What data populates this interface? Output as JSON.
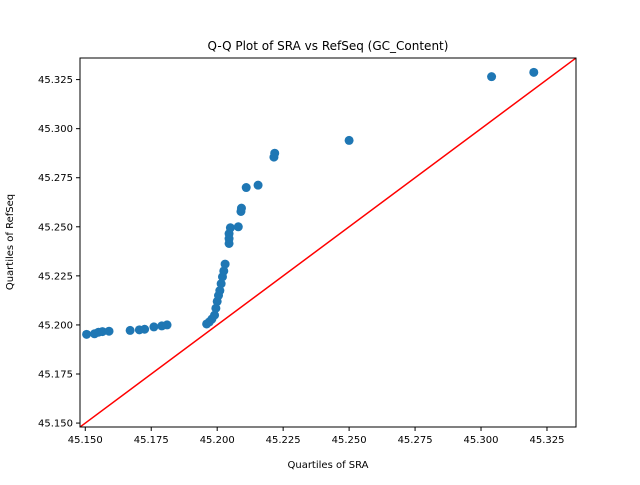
{
  "chart_data": {
    "type": "scatter",
    "title": "Q-Q Plot of SRA vs RefSeq (GC_Content)",
    "xlabel": "Quartiles of SRA",
    "ylabel": "Quartiles of RefSeq",
    "xlim": [
      45.148,
      45.336
    ],
    "ylim": [
      45.148,
      45.336
    ],
    "xticks": [
      "45.150",
      "45.175",
      "45.200",
      "45.225",
      "45.250",
      "45.275",
      "45.300",
      "45.325"
    ],
    "yticks": [
      "45.150",
      "45.175",
      "45.200",
      "45.225",
      "45.250",
      "45.275",
      "45.300",
      "45.325"
    ],
    "grid": false,
    "colors": {
      "points": "#1f77b4",
      "reference_line": "#ff0000"
    },
    "reference_line": {
      "from": [
        45.148,
        45.148
      ],
      "to": [
        45.336,
        45.336
      ]
    },
    "points": [
      {
        "x": 45.1505,
        "y": 45.1952
      },
      {
        "x": 45.1535,
        "y": 45.1955
      },
      {
        "x": 45.155,
        "y": 45.1963
      },
      {
        "x": 45.1565,
        "y": 45.1966
      },
      {
        "x": 45.159,
        "y": 45.1968
      },
      {
        "x": 45.167,
        "y": 45.1972
      },
      {
        "x": 45.1705,
        "y": 45.1975
      },
      {
        "x": 45.1725,
        "y": 45.1978
      },
      {
        "x": 45.176,
        "y": 45.199
      },
      {
        "x": 45.179,
        "y": 45.1995
      },
      {
        "x": 45.181,
        "y": 45.2
      },
      {
        "x": 45.196,
        "y": 45.2005
      },
      {
        "x": 45.197,
        "y": 45.2015
      },
      {
        "x": 45.198,
        "y": 45.203
      },
      {
        "x": 45.199,
        "y": 45.205
      },
      {
        "x": 45.1995,
        "y": 45.2085
      },
      {
        "x": 45.2,
        "y": 45.212
      },
      {
        "x": 45.2005,
        "y": 45.215
      },
      {
        "x": 45.201,
        "y": 45.2175
      },
      {
        "x": 45.2015,
        "y": 45.221
      },
      {
        "x": 45.202,
        "y": 45.2245
      },
      {
        "x": 45.2025,
        "y": 45.2275
      },
      {
        "x": 45.203,
        "y": 45.231
      },
      {
        "x": 45.2045,
        "y": 45.2415
      },
      {
        "x": 45.2045,
        "y": 45.244
      },
      {
        "x": 45.2045,
        "y": 45.2465
      },
      {
        "x": 45.205,
        "y": 45.2495
      },
      {
        "x": 45.208,
        "y": 45.25
      },
      {
        "x": 45.209,
        "y": 45.2578
      },
      {
        "x": 45.2092,
        "y": 45.2595
      },
      {
        "x": 45.211,
        "y": 45.27
      },
      {
        "x": 45.2155,
        "y": 45.2712
      },
      {
        "x": 45.2215,
        "y": 45.2855
      },
      {
        "x": 45.2218,
        "y": 45.2875
      },
      {
        "x": 45.25,
        "y": 45.294
      },
      {
        "x": 45.304,
        "y": 45.3265
      },
      {
        "x": 45.32,
        "y": 45.3287
      }
    ]
  }
}
